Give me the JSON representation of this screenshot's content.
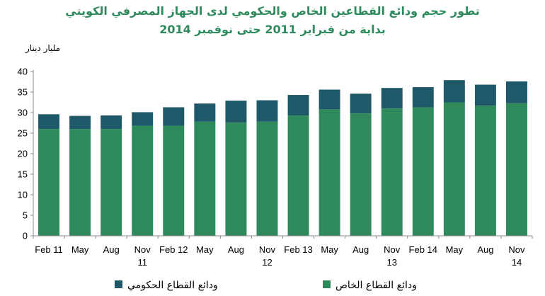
{
  "chart_data": {
    "type": "bar",
    "stacked": true,
    "title": "تطور حجم  ودائع القطاعين الخاص والحكومي لدى الجهاز المصرفي الكويتي",
    "subtitle": "بداية من فبراير 2011 حتى نوفمبر 2014",
    "ylabel": "مليار دينار",
    "xlabel": "",
    "ylim": [
      0,
      40
    ],
    "yticks": [
      0,
      5,
      10,
      15,
      20,
      25,
      30,
      35,
      40
    ],
    "grid": false,
    "legend_position": "bottom",
    "categories": [
      [
        "Feb 11"
      ],
      [
        "May"
      ],
      [
        "Aug"
      ],
      [
        "Nov",
        "11"
      ],
      [
        "Feb 12"
      ],
      [
        "May"
      ],
      [
        "Aug"
      ],
      [
        "Nov",
        "12"
      ],
      [
        "Feb 13"
      ],
      [
        "May"
      ],
      [
        "Aug"
      ],
      [
        "Nov",
        "13"
      ],
      [
        "Feb 14"
      ],
      [
        "May"
      ],
      [
        "Aug"
      ],
      [
        "Nov",
        "14"
      ]
    ],
    "series": [
      {
        "name": "ودائع القطاع الخاص",
        "color": "#2e8a5b",
        "values": [
          26.0,
          26.0,
          26.0,
          26.8,
          26.8,
          27.8,
          27.6,
          27.8,
          29.3,
          30.8,
          29.8,
          31.0,
          31.3,
          32.5,
          31.7,
          32.3
        ]
      },
      {
        "name": "ودائع القطاع الحكومي",
        "color": "#1f5868",
        "values": [
          3.6,
          3.2,
          3.3,
          3.3,
          4.5,
          4.4,
          5.3,
          5.2,
          5.0,
          4.8,
          4.8,
          5.0,
          4.9,
          5.4,
          5.1,
          5.3
        ]
      }
    ]
  }
}
